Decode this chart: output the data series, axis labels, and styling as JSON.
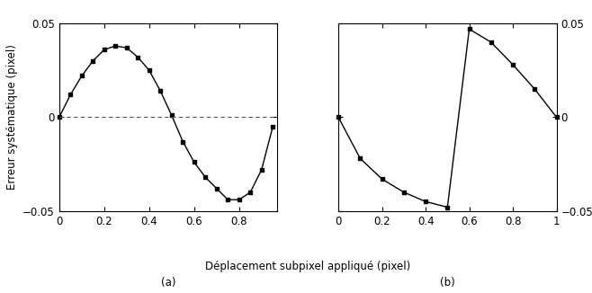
{
  "title_a": "(a)",
  "title_b": "(b)",
  "xlabel": "Déplacement subpixel appliqué (pixel)",
  "ylabel": "Erreur systématique (pixel)",
  "xlim_a": [
    0,
    0.97
  ],
  "xlim_b": [
    0,
    1.0
  ],
  "ylim": [
    -0.05,
    0.05
  ],
  "yticks": [
    -0.05,
    0,
    0.05
  ],
  "xticks_a": [
    0,
    0.2,
    0.4,
    0.6,
    0.8
  ],
  "xticks_b": [
    0,
    0.2,
    0.4,
    0.6,
    0.8,
    1.0
  ],
  "plot_a_x": [
    0.0,
    0.05,
    0.1,
    0.15,
    0.2,
    0.25,
    0.3,
    0.35,
    0.4,
    0.45,
    0.5,
    0.55,
    0.6,
    0.65,
    0.7,
    0.75,
    0.8,
    0.85,
    0.9,
    0.95
  ],
  "plot_a_y": [
    0.0,
    0.012,
    0.022,
    0.03,
    0.036,
    0.038,
    0.037,
    0.032,
    0.025,
    0.014,
    0.001,
    -0.013,
    -0.024,
    -0.032,
    -0.038,
    -0.044,
    -0.044,
    -0.04,
    -0.028,
    -0.005
  ],
  "plot_b_x": [
    0.0,
    0.1,
    0.2,
    0.3,
    0.4,
    0.5,
    0.6,
    0.7,
    0.8,
    0.9,
    1.0
  ],
  "plot_b_y": [
    0.0,
    -0.022,
    -0.033,
    -0.04,
    -0.045,
    -0.048,
    0.047,
    0.04,
    0.028,
    0.015,
    0.0
  ],
  "background_color": "#ffffff",
  "line_color": "#000000",
  "marker": "s",
  "markersize": 3.0,
  "linewidth": 1.0,
  "dashed_color": "#555555",
  "font_size": 8.5
}
